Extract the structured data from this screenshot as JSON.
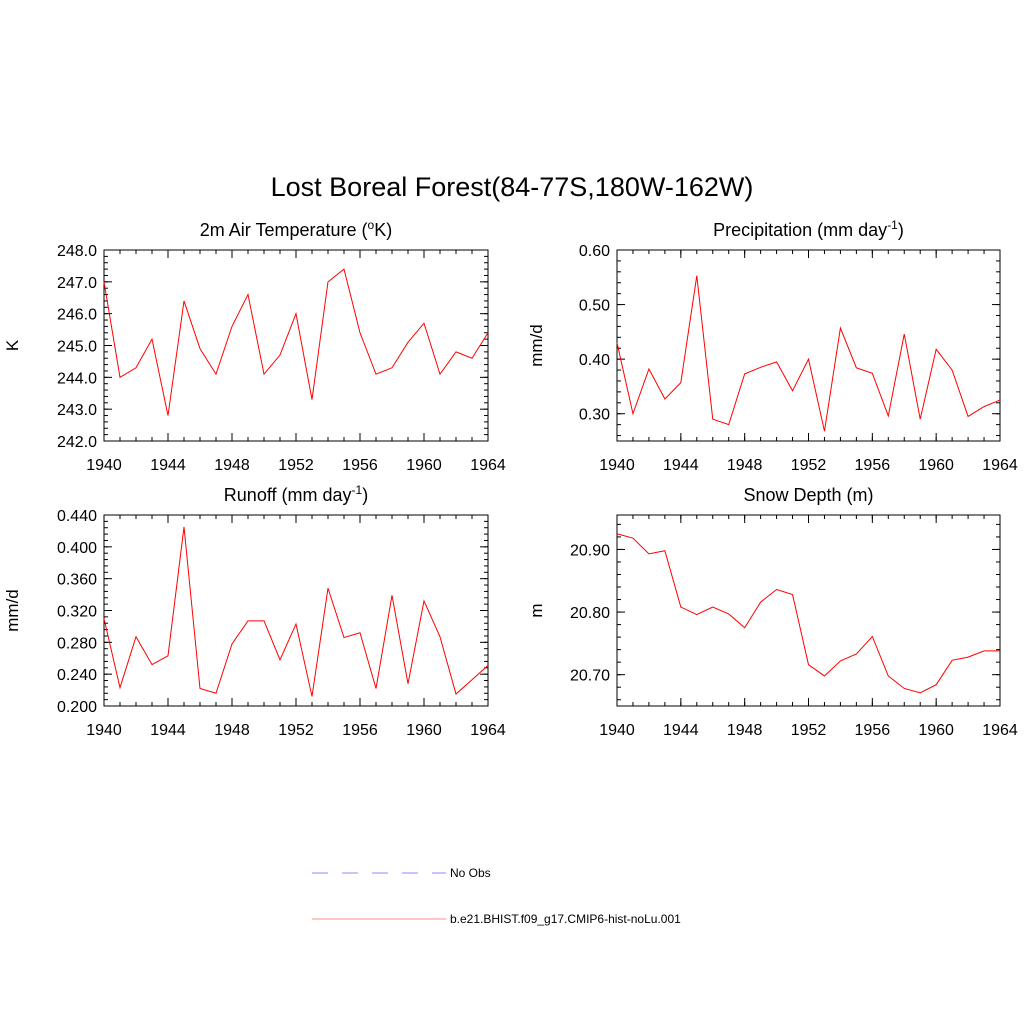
{
  "figure": {
    "title": "Lost Boreal Forest(84-77S,180W-162W)"
  },
  "legend": {
    "items": [
      {
        "label": "No Obs",
        "color": "#8c8cff",
        "style": "dashed"
      },
      {
        "label": "b.e21.BHIST.f09_g17.CMIP6-hist-noLu.001",
        "color": "#ff0000",
        "style": "solid"
      }
    ]
  },
  "chart_data": [
    {
      "type": "line",
      "title": "2m Air Temperature (",
      "title_sup": "o",
      "title_suffix": "K)",
      "ylabel": "K",
      "xlabel": "",
      "xlim": [
        1940,
        1964
      ],
      "ylim": [
        242.0,
        248.0
      ],
      "xticks": [
        1940,
        1944,
        1948,
        1952,
        1956,
        1960,
        1964
      ],
      "xtick_labels": [
        "1940",
        "1944",
        "1948",
        "1952",
        "1956",
        "1960",
        "1964"
      ],
      "yticks": [
        242.0,
        243.0,
        244.0,
        245.0,
        246.0,
        247.0,
        248.0
      ],
      "ytick_labels": [
        "242.0",
        "243.0",
        "244.0",
        "245.0",
        "246.0",
        "247.0",
        "248.0"
      ],
      "series": [
        {
          "color": "#ff0000",
          "x": [
            1940,
            1941,
            1942,
            1943,
            1944,
            1945,
            1946,
            1947,
            1948,
            1949,
            1950,
            1951,
            1952,
            1953,
            1954,
            1955,
            1956,
            1957,
            1958,
            1959,
            1960,
            1961,
            1962,
            1963,
            1964
          ],
          "y": [
            247.0,
            244.0,
            244.3,
            245.2,
            242.8,
            246.4,
            244.9,
            244.1,
            245.6,
            246.6,
            244.1,
            244.7,
            246.0,
            243.3,
            247.0,
            247.4,
            245.4,
            244.1,
            244.3,
            245.1,
            245.7,
            244.1,
            244.8,
            244.6,
            245.4
          ]
        }
      ]
    },
    {
      "type": "line",
      "title": "Precipitation (mm day",
      "title_sup": "-1",
      "title_suffix": ")",
      "ylabel": "mm/d",
      "xlabel": "",
      "xlim": [
        1940,
        1964
      ],
      "ylim": [
        0.25,
        0.6
      ],
      "xticks": [
        1940,
        1944,
        1948,
        1952,
        1956,
        1960,
        1964
      ],
      "xtick_labels": [
        "1940",
        "1944",
        "1948",
        "1952",
        "1956",
        "1960",
        "1964"
      ],
      "yticks": [
        0.3,
        0.4,
        0.5,
        0.6
      ],
      "ytick_labels": [
        "0.30",
        "0.40",
        "0.50",
        "0.60"
      ],
      "series": [
        {
          "color": "#ff0000",
          "x": [
            1940,
            1941,
            1942,
            1943,
            1944,
            1945,
            1946,
            1947,
            1948,
            1949,
            1950,
            1951,
            1952,
            1953,
            1954,
            1955,
            1956,
            1957,
            1958,
            1959,
            1960,
            1961,
            1962,
            1963,
            1964
          ],
          "y": [
            0.43,
            0.3,
            0.382,
            0.327,
            0.357,
            0.553,
            0.29,
            0.28,
            0.373,
            0.385,
            0.395,
            0.342,
            0.4,
            0.268,
            0.457,
            0.384,
            0.374,
            0.296,
            0.446,
            0.29,
            0.418,
            0.38,
            0.295,
            0.313,
            0.325
          ]
        }
      ]
    },
    {
      "type": "line",
      "title": "Runoff (mm day",
      "title_sup": "-1",
      "title_suffix": ")",
      "ylabel": "mm/d",
      "xlabel": "",
      "xlim": [
        1940,
        1964
      ],
      "ylim": [
        0.2,
        0.44
      ],
      "xticks": [
        1940,
        1944,
        1948,
        1952,
        1956,
        1960,
        1964
      ],
      "xtick_labels": [
        "1940",
        "1944",
        "1948",
        "1952",
        "1956",
        "1960",
        "1964"
      ],
      "yticks": [
        0.2,
        0.24,
        0.28,
        0.32,
        0.36,
        0.4,
        0.44
      ],
      "ytick_labels": [
        "0.200",
        "0.240",
        "0.280",
        "0.320",
        "0.360",
        "0.400",
        "0.440"
      ],
      "series": [
        {
          "color": "#ff0000",
          "x": [
            1940,
            1941,
            1942,
            1943,
            1944,
            1945,
            1946,
            1947,
            1948,
            1949,
            1950,
            1951,
            1952,
            1953,
            1954,
            1955,
            1956,
            1957,
            1958,
            1959,
            1960,
            1961,
            1962,
            1963,
            1964
          ],
          "y": [
            0.31,
            0.223,
            0.287,
            0.252,
            0.263,
            0.425,
            0.222,
            0.216,
            0.278,
            0.307,
            0.307,
            0.258,
            0.303,
            0.212,
            0.348,
            0.286,
            0.292,
            0.222,
            0.339,
            0.228,
            0.332,
            0.287,
            0.215,
            0.233,
            0.251
          ]
        }
      ]
    },
    {
      "type": "line",
      "title": "Snow Depth (m)",
      "title_sup": "",
      "title_suffix": "",
      "ylabel": "m",
      "xlabel": "",
      "xlim": [
        1940,
        1964
      ],
      "ylim": [
        20.65,
        20.955
      ],
      "xticks": [
        1940,
        1944,
        1948,
        1952,
        1956,
        1960,
        1964
      ],
      "xtick_labels": [
        "1940",
        "1944",
        "1948",
        "1952",
        "1956",
        "1960",
        "1964"
      ],
      "yticks": [
        20.7,
        20.8,
        20.9
      ],
      "ytick_labels": [
        "20.70",
        "20.80",
        "20.90"
      ],
      "series": [
        {
          "color": "#ff0000",
          "x": [
            1940,
            1941,
            1942,
            1943,
            1944,
            1945,
            1946,
            1947,
            1948,
            1949,
            1950,
            1951,
            1952,
            1953,
            1954,
            1955,
            1956,
            1957,
            1958,
            1959,
            1960,
            1961,
            1962,
            1963,
            1964
          ],
          "y": [
            20.925,
            20.918,
            20.893,
            20.898,
            20.808,
            20.796,
            20.808,
            20.797,
            20.775,
            20.816,
            20.836,
            20.828,
            20.716,
            20.698,
            20.722,
            20.733,
            20.761,
            20.698,
            20.678,
            20.671,
            20.684,
            20.723,
            20.728,
            20.738,
            20.738
          ]
        }
      ]
    }
  ]
}
